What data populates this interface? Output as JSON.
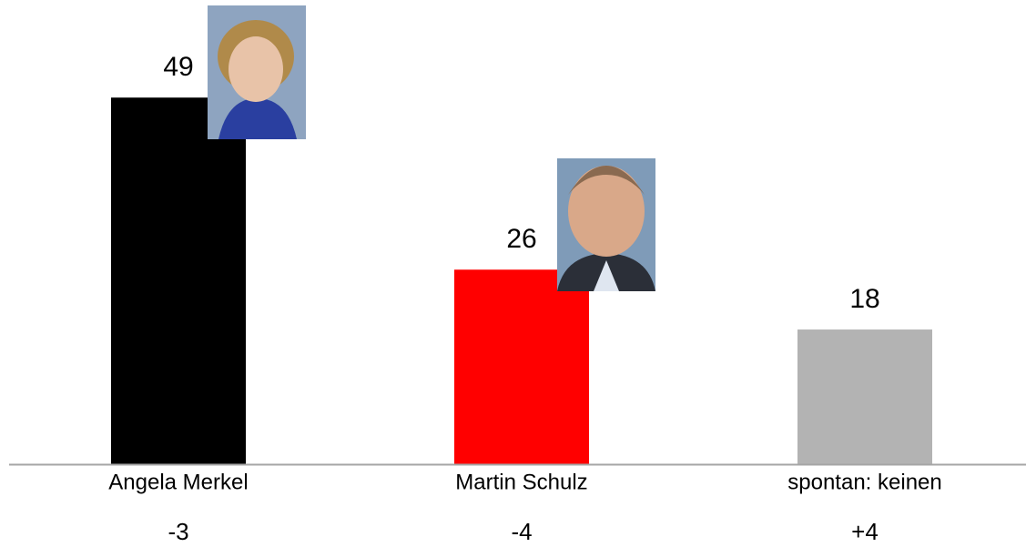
{
  "chart_data": {
    "type": "bar",
    "categories": [
      "Angela Merkel",
      "Martin Schulz",
      "spontan: keinen"
    ],
    "series": [
      {
        "values": [
          49,
          26,
          18
        ],
        "colors": [
          "#000000",
          "#ff0000",
          "#b3b3b3"
        ]
      }
    ],
    "changes": [
      -3,
      -4,
      {
        "value": 4,
        "label": "+4"
      }
    ]
  }
}
